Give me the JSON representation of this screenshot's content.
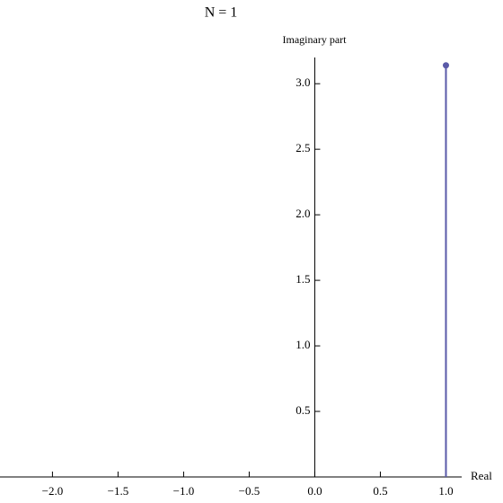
{
  "chart_data": {
    "type": "stem",
    "title": "N = 1",
    "x_label": "Real",
    "y_label": "Imaginary part",
    "x": [
      1.0
    ],
    "values": [
      3.14
    ],
    "color": "#5a5aa8",
    "xlim": [
      -2.4,
      1.12
    ],
    "ylim": [
      0,
      3.2
    ],
    "xticks": [
      {
        "value": -2,
        "label": "−2.0"
      },
      {
        "value": -1.5,
        "label": "−1.5"
      },
      {
        "value": -1,
        "label": "−1.0"
      },
      {
        "value": -0.5,
        "label": "−0.5"
      },
      {
        "value": 0,
        "label": "0.0"
      },
      {
        "value": 0.5,
        "label": "0.5"
      },
      {
        "value": 1,
        "label": "1.0"
      }
    ],
    "yticks": [
      {
        "value": 0.5,
        "label": "0.5"
      },
      {
        "value": 1,
        "label": "1.0"
      },
      {
        "value": 1.5,
        "label": "1.5"
      },
      {
        "value": 2,
        "label": "2.0"
      },
      {
        "value": 2.5,
        "label": "2.5"
      },
      {
        "value": 3,
        "label": "3.0"
      }
    ]
  }
}
